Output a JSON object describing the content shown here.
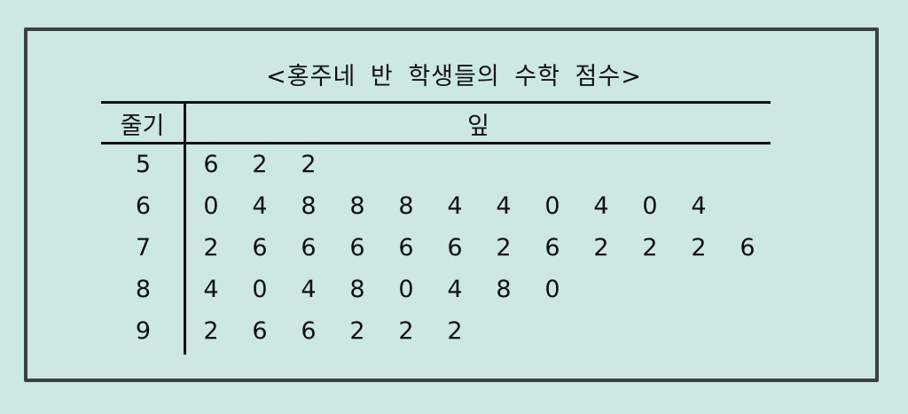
{
  "title": "<홍주네 반 학생들의 수학 점수>",
  "header": {
    "stem": "줄기",
    "leaf": "잎"
  },
  "rows": [
    {
      "stem": "5",
      "leaves": [
        "6",
        "2",
        "2"
      ]
    },
    {
      "stem": "6",
      "leaves": [
        "0",
        "4",
        "8",
        "8",
        "8",
        "4",
        "4",
        "0",
        "4",
        "0",
        "4"
      ]
    },
    {
      "stem": "7",
      "leaves": [
        "2",
        "6",
        "6",
        "6",
        "6",
        "6",
        "2",
        "6",
        "2",
        "2",
        "2",
        "6"
      ]
    },
    {
      "stem": "8",
      "leaves": [
        "4",
        "0",
        "4",
        "8",
        "0",
        "4",
        "8",
        "0"
      ]
    },
    {
      "stem": "9",
      "leaves": [
        "2",
        "6",
        "6",
        "2",
        "2",
        "2"
      ]
    }
  ]
}
